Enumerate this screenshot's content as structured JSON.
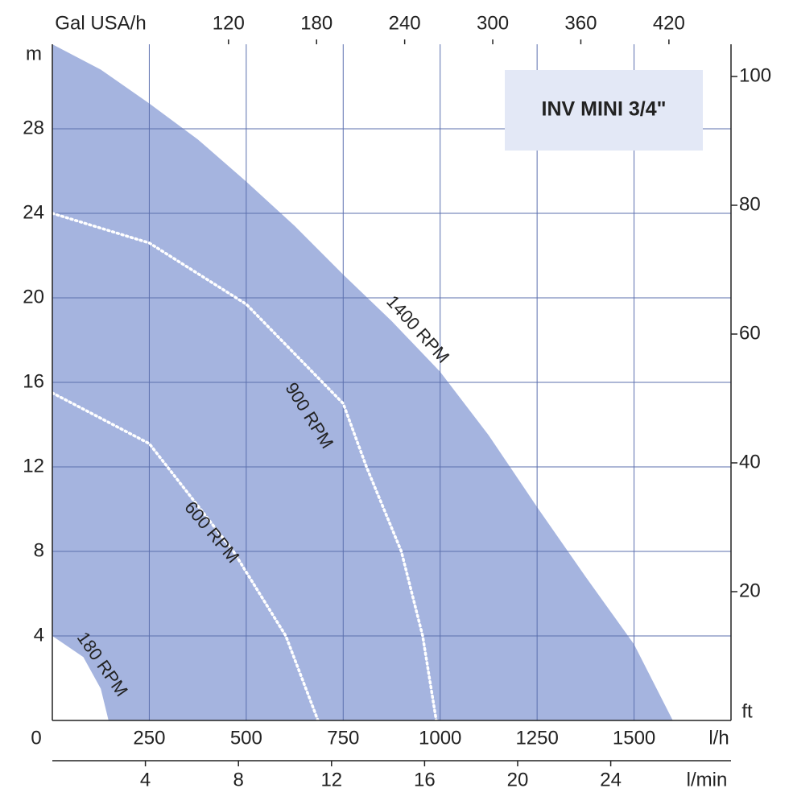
{
  "chart_data": {
    "type": "line",
    "title": "INV MINI 3/4\"",
    "x_label": "l/h",
    "y_label": "m",
    "y2_label": "ft",
    "x2_label": "Gal USA/h",
    "x3_label": "l/min",
    "origin_label": "0",
    "xlim": [
      0,
      1750
    ],
    "xticks": [
      250,
      500,
      750,
      1000,
      1250,
      1500
    ],
    "ylim": [
      0,
      32
    ],
    "yticks": [
      4,
      8,
      12,
      16,
      20,
      24,
      28
    ],
    "y2lim": [
      0,
      105
    ],
    "y2ticks": [
      20,
      40,
      60,
      80,
      100
    ],
    "x2lim": [
      0,
      462.3
    ],
    "x2ticks": [
      120,
      180,
      240,
      300,
      360,
      420
    ],
    "x3lim": [
      0,
      29.17
    ],
    "x3ticks": [
      4,
      8,
      12,
      16,
      20,
      24
    ],
    "grid": true,
    "series": [
      {
        "name": "1400 RPM",
        "color": "#a5b4df",
        "x": [
          0,
          125,
          250,
          375,
          500,
          625,
          750,
          875,
          1000,
          1125,
          1250,
          1375,
          1500,
          1600
        ],
        "values": [
          32,
          30.8,
          29.2,
          27.5,
          25.5,
          23.4,
          21.1,
          18.9,
          16.5,
          13.5,
          10.1,
          6.8,
          3.6,
          0
        ]
      },
      {
        "name": "900 RPM",
        "color": "#ffffff",
        "x": [
          0,
          250,
          500,
          750,
          810,
          900,
          955,
          990
        ],
        "values": [
          24,
          22.6,
          19.7,
          15,
          12,
          8,
          4,
          0
        ]
      },
      {
        "name": "600 RPM",
        "color": "#ffffff",
        "x": [
          0,
          250,
          467,
          602,
          685
        ],
        "values": [
          15.5,
          13.1,
          8,
          4,
          0
        ]
      },
      {
        "name": "180 RPM",
        "color": "#ffffff",
        "x": [
          0,
          80,
          125,
          145
        ],
        "values": [
          4,
          3,
          1.5,
          0
        ]
      }
    ]
  }
}
